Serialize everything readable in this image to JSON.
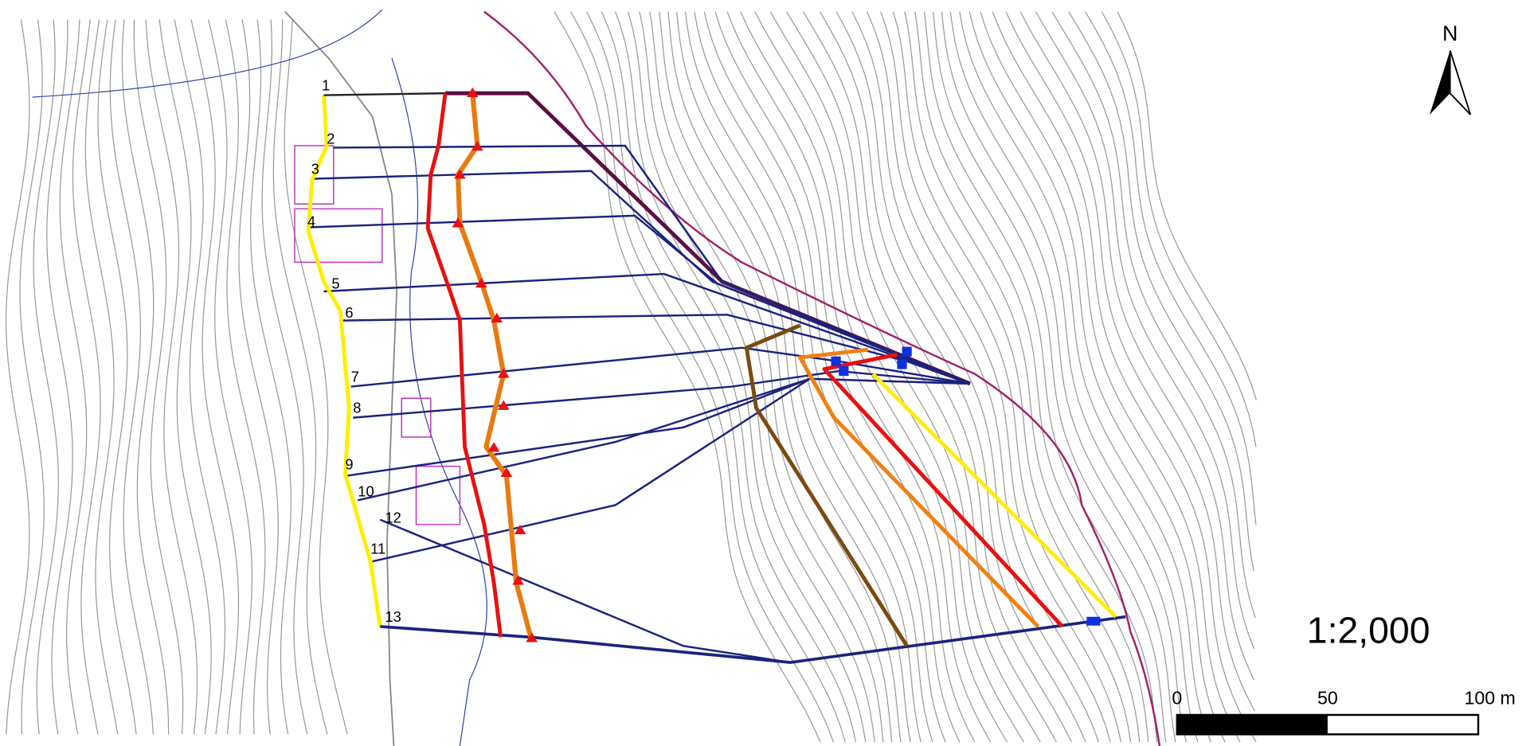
{
  "north_arrow": {
    "label": "N"
  },
  "scale": {
    "ratio": "1:2,000",
    "bar_labels": [
      "0",
      "50",
      "100 m"
    ]
  },
  "sections": [
    "1",
    "2",
    "3",
    "4",
    "5",
    "6",
    "7",
    "8",
    "9",
    "10",
    "11",
    "12",
    "13"
  ]
}
